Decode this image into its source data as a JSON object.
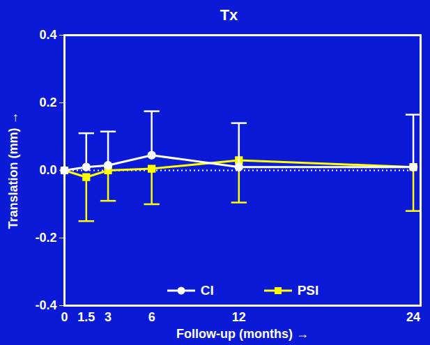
{
  "chart_data": {
    "type": "line",
    "title": "Tx",
    "x_label": "Follow-up (months)",
    "y_label": "Translation (mm)",
    "x": [
      0,
      1.5,
      3,
      6,
      12,
      24
    ],
    "xlim": [
      0,
      24.5
    ],
    "xticks": [
      0,
      1.5,
      3,
      6,
      12,
      24
    ],
    "ylim": [
      -0.4,
      0.4
    ],
    "yticks": [
      -0.4,
      -0.2,
      {
        "value": 0,
        "label": "0.0"
      },
      0.2,
      0.4
    ],
    "reference_line": 0,
    "legend": "bottom",
    "series": [
      {
        "name": "CI",
        "color": "#ffffff",
        "marker": "circle",
        "values": [
          0,
          0.01,
          0.015,
          0.045,
          0.01,
          0.01
        ],
        "error_plus": [
          null,
          0.1,
          0.1,
          0.13,
          0.13,
          0.155
        ]
      },
      {
        "name": "PSI",
        "color": "#ffff00",
        "marker": "square",
        "values": [
          0,
          -0.02,
          0,
          0.005,
          0.03,
          0.01
        ],
        "error_minus": [
          null,
          0.13,
          0.09,
          0.105,
          0.125,
          0.13
        ]
      }
    ]
  }
}
